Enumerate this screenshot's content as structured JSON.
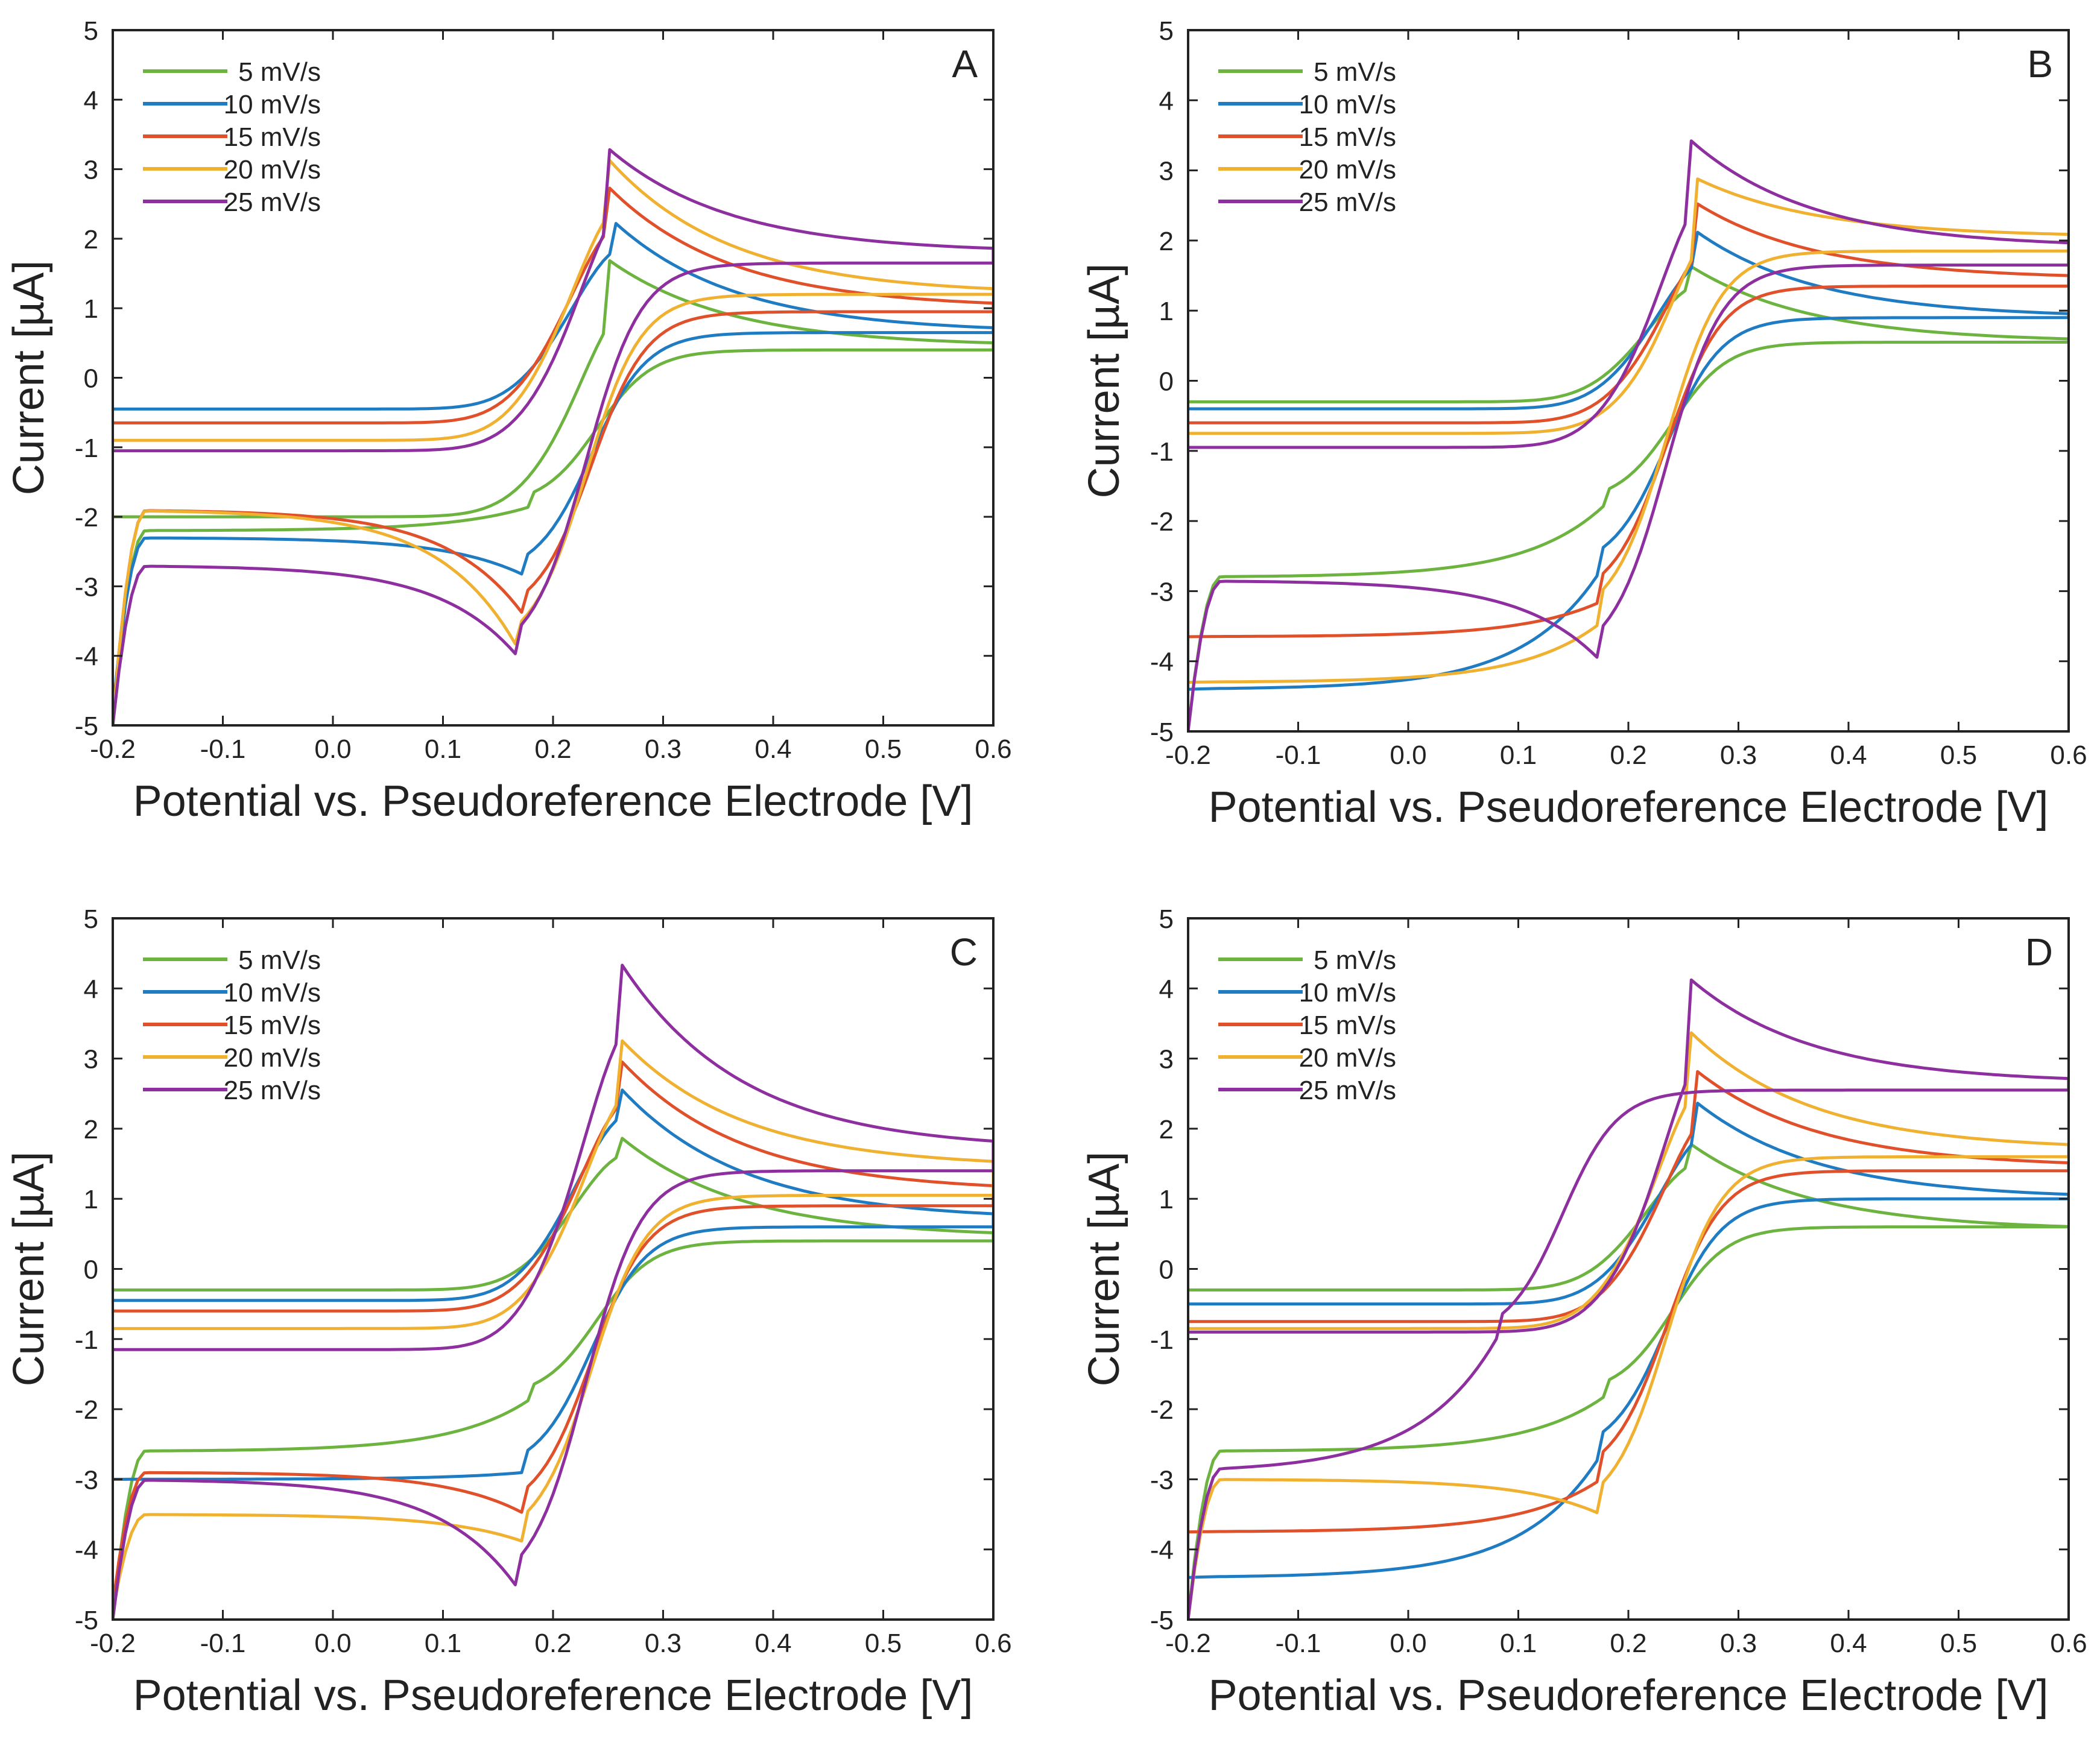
{
  "figure": {
    "xlabel": "Potential vs. Pseudoreference Electrode [V]",
    "ylabel": "Current [µA]"
  },
  "chart_data": [
    {
      "type": "line",
      "panel": "A",
      "title": "A",
      "xlabel": "Potential vs. Pseudoreference Electrode [V]",
      "ylabel": "Current [µA]",
      "xlim": [
        -0.2,
        0.6
      ],
      "ylim": [
        -5,
        5
      ],
      "xticks": [
        "-0.2",
        "-0.1",
        "0.0",
        "0.1",
        "0.2",
        "0.3",
        "0.4",
        "0.5",
        "0.6"
      ],
      "yticks": [
        "5",
        "4",
        "3",
        "2",
        "1",
        "0",
        "-1",
        "-2",
        "-3",
        "-4",
        "-5"
      ],
      "legend_position": "top-left",
      "series": [
        {
          "name": "5 mV/s",
          "color": "#6db33f",
          "cathodic": {
            "start": 0.4,
            "peak": -1.85,
            "end": -2.2,
            "final": -5.0
          },
          "anodic": {
            "start": -2.0,
            "peak": 1.7,
            "end": 0.45
          },
          "peak_a": 0.25,
          "peak_c": 0.18
        },
        {
          "name": "10 mV/s",
          "color": "#1f7cc3",
          "cathodic": {
            "start": 0.65,
            "peak": -2.85,
            "end": -2.3,
            "final": -4.8
          },
          "anodic": {
            "start": -0.45,
            "peak": 2.25,
            "end": 0.65
          },
          "peak_a": 0.255,
          "peak_c": 0.175
        },
        {
          "name": "15 mV/s",
          "color": "#e0502a",
          "cathodic": {
            "start": 0.95,
            "peak": -3.45,
            "end": -1.9,
            "final": -5.0
          },
          "anodic": {
            "start": -0.65,
            "peak": 2.75,
            "end": 1.0
          },
          "peak_a": 0.25,
          "peak_c": 0.175
        },
        {
          "name": "20 mV/s",
          "color": "#f0b030",
          "cathodic": {
            "start": 1.2,
            "peak": -3.95,
            "end": -1.9,
            "final": -5.0
          },
          "anodic": {
            "start": -0.9,
            "peak": 3.15,
            "end": 1.2
          },
          "peak_a": 0.25,
          "peak_c": 0.17
        },
        {
          "name": "25 mV/s",
          "color": "#8e2f9f",
          "cathodic": {
            "start": 1.65,
            "peak": -4.05,
            "end": -2.7,
            "final": -5.0
          },
          "anodic": {
            "start": -1.05,
            "peak": 3.3,
            "end": 1.8
          },
          "peak_a": 0.25,
          "peak_c": 0.17
        }
      ]
    },
    {
      "type": "line",
      "panel": "B",
      "title": "B",
      "xlabel": "Potential vs. Pseudoreference Electrode [V]",
      "ylabel": "Current [µA]",
      "xlim": [
        -0.2,
        0.6
      ],
      "ylim": [
        -5,
        5
      ],
      "xticks": [
        "-0.2",
        "-0.1",
        "0.0",
        "0.1",
        "0.2",
        "0.3",
        "0.4",
        "0.5",
        "0.6"
      ],
      "yticks": [
        "5",
        "4",
        "3",
        "2",
        "1",
        "0",
        "-1",
        "-2",
        "-3",
        "-4",
        "-5"
      ],
      "legend_position": "top-left",
      "series": [
        {
          "name": "5 mV/s",
          "color": "#6db33f",
          "cathodic": {
            "start": 0.55,
            "peak": -1.75,
            "end": -2.8,
            "final": -5.0
          },
          "anodic": {
            "start": -0.3,
            "peak": 1.65,
            "end": 0.55
          },
          "peak_a": 0.255,
          "peak_c": 0.18
        },
        {
          "name": "10 mV/s",
          "color": "#1f7cc3",
          "cathodic": {
            "start": 0.9,
            "peak": -2.7,
            "end": -4.4,
            "final": -4.4
          },
          "anodic": {
            "start": -0.4,
            "peak": 2.15,
            "end": 0.9
          },
          "peak_a": 0.26,
          "peak_c": 0.175
        },
        {
          "name": "15 mV/s",
          "color": "#e0502a",
          "cathodic": {
            "start": 1.35,
            "peak": -3.15,
            "end": -3.65,
            "final": -3.65
          },
          "anodic": {
            "start": -0.6,
            "peak": 2.55,
            "end": 1.45
          },
          "peak_a": 0.26,
          "peak_c": 0.175
        },
        {
          "name": "20 mV/s",
          "color": "#f0b030",
          "cathodic": {
            "start": 1.85,
            "peak": -3.45,
            "end": -4.3,
            "final": -4.3
          },
          "anodic": {
            "start": -0.75,
            "peak": 2.9,
            "end": 2.05
          },
          "peak_a": 0.26,
          "peak_c": 0.175
        },
        {
          "name": "25 mV/s",
          "color": "#8e2f9f",
          "cathodic": {
            "start": 1.65,
            "peak": -4.0,
            "end": -2.85,
            "final": -5.0
          },
          "anodic": {
            "start": -0.95,
            "peak": 3.45,
            "end": 1.9
          },
          "peak_a": 0.255,
          "peak_c": 0.175
        }
      ]
    },
    {
      "type": "line",
      "panel": "C",
      "title": "C",
      "xlabel": "Potential vs. Pseudoreference Electrode [V]",
      "ylabel": "Current [µA]",
      "xlim": [
        -0.2,
        0.6
      ],
      "ylim": [
        -5,
        5
      ],
      "xticks": [
        "-0.2",
        "-0.1",
        "0.0",
        "0.1",
        "0.2",
        "0.3",
        "0.4",
        "0.5",
        "0.6"
      ],
      "yticks": [
        "5",
        "4",
        "3",
        "2",
        "1",
        "0",
        "-1",
        "-2",
        "-3",
        "-4",
        "-5"
      ],
      "legend_position": "top-left",
      "series": [
        {
          "name": "5 mV/s",
          "color": "#6db33f",
          "cathodic": {
            "start": 0.4,
            "peak": -1.85,
            "end": -2.6,
            "final": -5.0
          },
          "anodic": {
            "start": -0.3,
            "peak": 1.9,
            "end": 0.45
          },
          "peak_a": 0.26,
          "peak_c": 0.18
        },
        {
          "name": "10 mV/s",
          "color": "#1f7cc3",
          "cathodic": {
            "start": 0.6,
            "peak": -2.9,
            "end": -3.0,
            "final": -3.0
          },
          "anodic": {
            "start": -0.45,
            "peak": 2.6,
            "end": 0.7
          },
          "peak_a": 0.26,
          "peak_c": 0.175
        },
        {
          "name": "15 mV/s",
          "color": "#e0502a",
          "cathodic": {
            "start": 0.9,
            "peak": -3.5,
            "end": -2.9,
            "final": -4.8
          },
          "anodic": {
            "start": -0.6,
            "peak": 3.0,
            "end": 1.1
          },
          "peak_a": 0.26,
          "peak_c": 0.175
        },
        {
          "name": "20 mV/s",
          "color": "#f0b030",
          "cathodic": {
            "start": 1.05,
            "peak": -3.9,
            "end": -3.5,
            "final": -4.9
          },
          "anodic": {
            "start": -0.85,
            "peak": 3.3,
            "end": 1.45
          },
          "peak_a": 0.26,
          "peak_c": 0.175
        },
        {
          "name": "25 mV/s",
          "color": "#8e2f9f",
          "cathodic": {
            "start": 1.4,
            "peak": -4.6,
            "end": -3.0,
            "final": -5.0
          },
          "anodic": {
            "start": -1.15,
            "peak": 4.4,
            "end": 1.7
          },
          "peak_a": 0.26,
          "peak_c": 0.17
        }
      ]
    },
    {
      "type": "line",
      "panel": "D",
      "title": "D",
      "xlabel": "Potential vs. Pseudoreference Electrode [V]",
      "ylabel": "Current [µA]",
      "xlim": [
        -0.2,
        0.6
      ],
      "ylim": [
        -5,
        5
      ],
      "xticks": [
        "-0.2",
        "-0.1",
        "0.0",
        "0.1",
        "0.2",
        "0.3",
        "0.4",
        "0.5",
        "0.6"
      ],
      "yticks": [
        "5",
        "4",
        "3",
        "2",
        "1",
        "0",
        "-1",
        "-2",
        "-3",
        "-4",
        "-5"
      ],
      "legend_position": "top-left",
      "series": [
        {
          "name": "5 mV/s",
          "color": "#6db33f",
          "cathodic": {
            "start": 0.6,
            "peak": -1.8,
            "end": -2.6,
            "final": -5.0
          },
          "anodic": {
            "start": -0.3,
            "peak": 1.8,
            "end": 0.55
          },
          "peak_a": 0.255,
          "peak_c": 0.18
        },
        {
          "name": "10 mV/s",
          "color": "#1f7cc3",
          "cathodic": {
            "start": 1.0,
            "peak": -2.65,
            "end": -4.4,
            "final": -4.4
          },
          "anodic": {
            "start": -0.5,
            "peak": 2.4,
            "end": 1.0
          },
          "peak_a": 0.26,
          "peak_c": 0.175
        },
        {
          "name": "15 mV/s",
          "color": "#e0502a",
          "cathodic": {
            "start": 1.4,
            "peak": -3.0,
            "end": -3.75,
            "final": -3.75
          },
          "anodic": {
            "start": -0.75,
            "peak": 2.85,
            "end": 1.45
          },
          "peak_a": 0.26,
          "peak_c": 0.175
        },
        {
          "name": "20 mV/s",
          "color": "#f0b030",
          "cathodic": {
            "start": 1.6,
            "peak": -3.5,
            "end": -3.0,
            "final": -5.0
          },
          "anodic": {
            "start": -0.85,
            "peak": 3.4,
            "end": 1.7
          },
          "peak_a": 0.255,
          "peak_c": 0.175
        },
        {
          "name": "25 mV/s",
          "color": "#8e2f9f",
          "cathodic": {
            "start": 2.55,
            "peak": -1.0,
            "end": -2.9,
            "final": -5.0
          },
          "anodic": {
            "start": -0.9,
            "peak": 4.15,
            "end": 2.65
          },
          "peak_a": 0.255,
          "peak_c": 0.08
        }
      ]
    }
  ]
}
